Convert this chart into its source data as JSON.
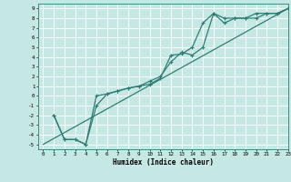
{
  "title": "",
  "xlabel": "Humidex (Indice chaleur)",
  "xlim": [
    -0.5,
    23
  ],
  "ylim": [
    -5.5,
    9.5
  ],
  "xticks": [
    0,
    1,
    2,
    3,
    4,
    5,
    6,
    7,
    8,
    9,
    10,
    11,
    12,
    13,
    14,
    15,
    16,
    17,
    18,
    19,
    20,
    21,
    22,
    23
  ],
  "yticks": [
    -5,
    -4,
    -3,
    -2,
    -1,
    0,
    1,
    2,
    3,
    4,
    5,
    6,
    7,
    8,
    9
  ],
  "bg_color": "#c5e8e5",
  "line_color": "#2e7d72",
  "grid_color": "#ffffff",
  "line1_x": [
    0,
    23
  ],
  "line1_y": [
    -5,
    9
  ],
  "line2_x": [
    1,
    2,
    3,
    4,
    5,
    6,
    7,
    8,
    9,
    10,
    11,
    12,
    13,
    14,
    15,
    16,
    17,
    18,
    19,
    20,
    21,
    22,
    23
  ],
  "line2_y": [
    -2,
    -4.5,
    -4.5,
    -5,
    -1,
    0.2,
    0.5,
    0.8,
    1.0,
    1.2,
    1.8,
    4.2,
    4.3,
    5.0,
    7.5,
    8.5,
    8.0,
    8.0,
    8.0,
    8.0,
    8.5,
    8.5,
    9.0
  ],
  "line3_x": [
    1,
    2,
    3,
    4,
    5,
    6,
    7,
    8,
    9,
    10,
    11,
    12,
    13,
    14,
    15,
    16,
    17,
    18,
    19,
    20,
    21,
    22,
    23
  ],
  "line3_y": [
    -2,
    -4.5,
    -4.5,
    -5,
    0,
    0.2,
    0.5,
    0.8,
    1.0,
    1.5,
    2.0,
    3.5,
    4.5,
    4.2,
    5.0,
    8.5,
    7.5,
    8.0,
    8.0,
    8.5,
    8.5,
    8.5,
    9.0
  ]
}
